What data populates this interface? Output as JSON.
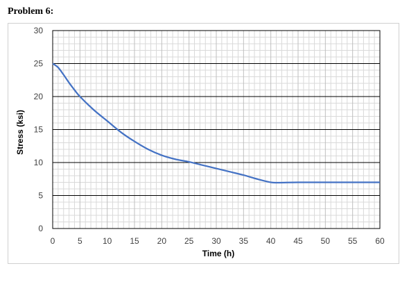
{
  "page": {
    "title": "Problem 6:"
  },
  "chart_data": {
    "type": "line",
    "title": "",
    "xlabel": "Time (h)",
    "ylabel": "Stress (ksi)",
    "xlim": [
      0,
      60
    ],
    "ylim": [
      0,
      30
    ],
    "xticks": [
      0,
      5,
      10,
      15,
      20,
      25,
      30,
      35,
      40,
      45,
      50,
      55,
      60
    ],
    "yticks": [
      0,
      5,
      10,
      15,
      20,
      25,
      30
    ],
    "grid": true,
    "legend": "none",
    "line_color": "#4472c4",
    "series": [
      {
        "x": [
          0,
          1,
          2,
          3,
          4,
          5,
          7.5,
          10,
          12.5,
          15,
          17.5,
          20,
          22.5,
          25,
          27.5,
          30,
          32.5,
          35,
          37.5,
          40,
          41.5,
          45,
          50,
          55,
          60
        ],
        "y": [
          25,
          24.4,
          23.3,
          22.1,
          21,
          20,
          18,
          16.3,
          14.6,
          13.2,
          12,
          11.1,
          10.5,
          10.1,
          9.6,
          9.1,
          8.6,
          8.1,
          7.5,
          7.0,
          6.95,
          7.0,
          7.0,
          7.0,
          7.0
        ]
      }
    ]
  }
}
